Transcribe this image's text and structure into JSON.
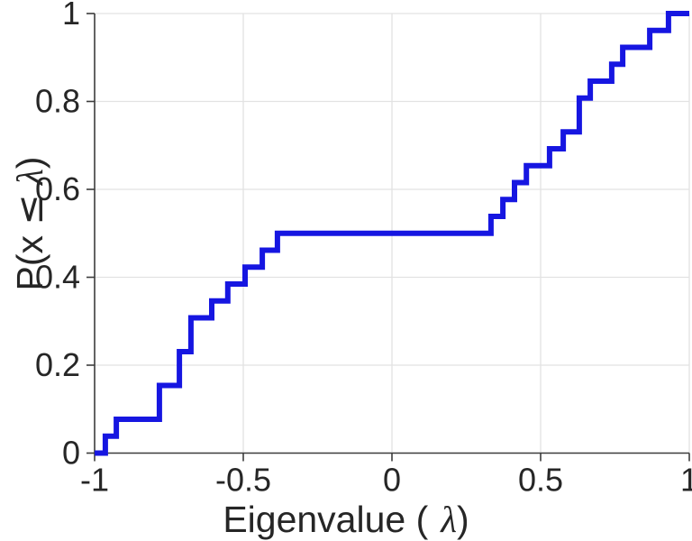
{
  "figure": {
    "xlabel_prefix": "Eigenvalue (",
    "xlabel_lambda": "λ",
    "xlabel_suffix": ")",
    "ylabel_prefix": "P(x ",
    "ylabel_leq": "≤",
    "ylabel_lambda": " λ",
    "ylabel_suffix": ")"
  },
  "chart_data": {
    "type": "step",
    "subtype": "empirical-cdf",
    "title": "",
    "xlabel": "Eigenvalue ( λ)",
    "ylabel": "P(x ≤ λ)",
    "xlim": [
      -1,
      1
    ],
    "ylim": [
      0,
      1
    ],
    "grid": true,
    "legend": "none",
    "line_color": "#1616e1",
    "line_width": 6,
    "spine_color": "#3c3c3c",
    "grid_color": "#e2e2e2",
    "text_color": "#262626",
    "n_points": 26,
    "x_ticks": [
      {
        "value": -1,
        "label": "-1"
      },
      {
        "value": -0.5,
        "label": "-0.5"
      },
      {
        "value": 0,
        "label": "0"
      },
      {
        "value": 0.5,
        "label": "0.5"
      },
      {
        "value": 1,
        "label": "1"
      }
    ],
    "y_ticks": [
      {
        "value": 0,
        "label": "0"
      },
      {
        "value": 0.2,
        "label": "0.2"
      },
      {
        "value": 0.4,
        "label": "0.4"
      },
      {
        "value": 0.6,
        "label": "0.6"
      },
      {
        "value": 0.8,
        "label": "0.8"
      },
      {
        "value": 1,
        "label": "1"
      }
    ],
    "start": {
      "x": -1.0,
      "y": 0.0
    },
    "end_x": 1.0,
    "steps": [
      {
        "x": -0.964,
        "y": 0.0385
      },
      {
        "x": -0.927,
        "y": 0.0769
      },
      {
        "x": -0.782,
        "y": 0.1538
      },
      {
        "x": -0.715,
        "y": 0.2308
      },
      {
        "x": -0.676,
        "y": 0.3077
      },
      {
        "x": -0.606,
        "y": 0.3462
      },
      {
        "x": -0.552,
        "y": 0.3846
      },
      {
        "x": -0.494,
        "y": 0.4231
      },
      {
        "x": -0.436,
        "y": 0.4615
      },
      {
        "x": -0.385,
        "y": 0.5
      },
      {
        "x": 0.333,
        "y": 0.5385
      },
      {
        "x": 0.373,
        "y": 0.5769
      },
      {
        "x": 0.412,
        "y": 0.6154
      },
      {
        "x": 0.452,
        "y": 0.6538
      },
      {
        "x": 0.53,
        "y": 0.6923
      },
      {
        "x": 0.576,
        "y": 0.7308
      },
      {
        "x": 0.63,
        "y": 0.8077
      },
      {
        "x": 0.667,
        "y": 0.8462
      },
      {
        "x": 0.739,
        "y": 0.8846
      },
      {
        "x": 0.776,
        "y": 0.9231
      },
      {
        "x": 0.867,
        "y": 0.9615
      },
      {
        "x": 0.93,
        "y": 1.0
      }
    ]
  }
}
